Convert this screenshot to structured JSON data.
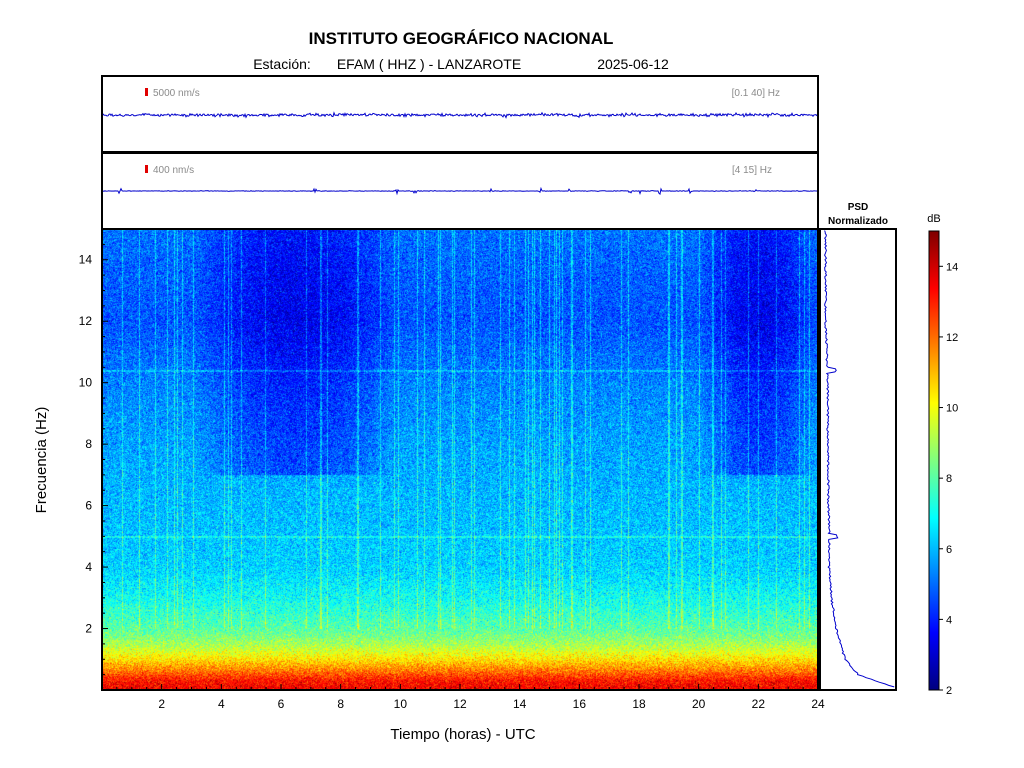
{
  "header": {
    "title": "INSTITUTO GEOGRÁFICO NACIONAL",
    "station_label": "Estación:",
    "station": "EFAM ( HHZ ) - LANZAROTE",
    "date": "2025-06-12"
  },
  "traces": [
    {
      "scale_label": "5000 nm/s",
      "band_label": "[0.1 40] Hz"
    },
    {
      "scale_label": "400 nm/s",
      "band_label": "[4 15] Hz"
    }
  ],
  "psd_label": {
    "line1": "PSD",
    "line2": "Normalizado"
  },
  "colors": {
    "trace": "#0000cc",
    "scale_bar": "#e00000",
    "frame": "#000000"
  },
  "chart_data": {
    "type": "heatmap",
    "xlabel": "Tiempo (horas) - UTC",
    "ylabel": "Frecuencia  (Hz)",
    "xlim": [
      0,
      24
    ],
    "ylim": [
      0,
      15
    ],
    "xticks": [
      2,
      4,
      6,
      8,
      10,
      12,
      14,
      16,
      18,
      20,
      22,
      24
    ],
    "yticks": [
      2,
      4,
      6,
      8,
      10,
      12,
      14
    ],
    "colorbar": {
      "label": "dB",
      "range": [
        2,
        15
      ],
      "ticks": [
        2,
        4,
        6,
        8,
        10,
        12,
        14
      ],
      "colormap": "jet"
    },
    "level_profile": [
      {
        "f": 0.0,
        "db": 13.5
      },
      {
        "f": 0.3,
        "db": 13.2
      },
      {
        "f": 0.6,
        "db": 12.0
      },
      {
        "f": 1.0,
        "db": 10.5
      },
      {
        "f": 1.5,
        "db": 9.0
      },
      {
        "f": 2.0,
        "db": 8.0
      },
      {
        "f": 3.0,
        "db": 7.0
      },
      {
        "f": 4.0,
        "db": 6.3
      },
      {
        "f": 6.0,
        "db": 6.0
      },
      {
        "f": 8.0,
        "db": 5.7
      },
      {
        "f": 10.0,
        "db": 5.3
      },
      {
        "f": 12.0,
        "db": 4.7
      },
      {
        "f": 14.0,
        "db": 4.9
      },
      {
        "f": 15.0,
        "db": 5.1
      }
    ],
    "quiet_periods_hours": [
      [
        3,
        10
      ],
      [
        20,
        24
      ]
    ],
    "spectral_lines_hz": [
      5.0,
      10.4
    ],
    "psd_normalized": [
      {
        "f": 0.1,
        "v": 1.0
      },
      {
        "f": 0.5,
        "v": 0.5
      },
      {
        "f": 1.0,
        "v": 0.32
      },
      {
        "f": 2.0,
        "v": 0.2
      },
      {
        "f": 3.0,
        "v": 0.13
      },
      {
        "f": 4.0,
        "v": 0.1
      },
      {
        "f": 5.0,
        "v": 0.1
      },
      {
        "f": 6.0,
        "v": 0.09
      },
      {
        "f": 8.0,
        "v": 0.08
      },
      {
        "f": 10.0,
        "v": 0.08
      },
      {
        "f": 12.0,
        "v": 0.05
      },
      {
        "f": 14.0,
        "v": 0.05
      },
      {
        "f": 15.0,
        "v": 0.05
      }
    ]
  }
}
